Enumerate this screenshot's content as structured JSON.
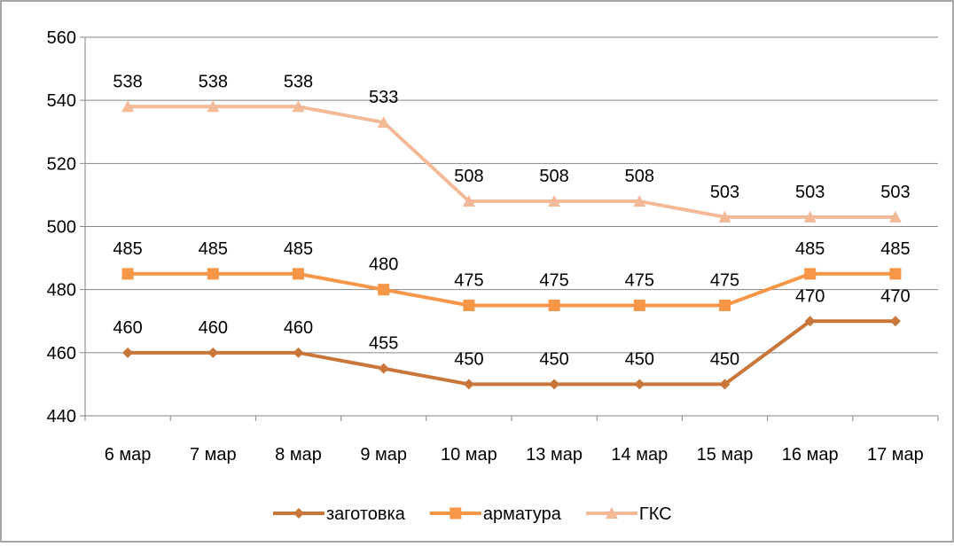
{
  "chart_data": {
    "type": "line",
    "categories": [
      "6 мар",
      "7 мар",
      "8 мар",
      "9 мар",
      "10 мар",
      "13 мар",
      "14 мар",
      "15 мар",
      "16 мар",
      "17 мар"
    ],
    "series": [
      {
        "name": "заготовка",
        "values": [
          460,
          460,
          460,
          455,
          450,
          450,
          450,
          450,
          470,
          470
        ],
        "color": "#C8763A",
        "marker": "diamond"
      },
      {
        "name": "арматура",
        "values": [
          485,
          485,
          485,
          480,
          475,
          475,
          475,
          475,
          485,
          485
        ],
        "color": "#F79646",
        "marker": "square"
      },
      {
        "name": "ГКС",
        "values": [
          538,
          538,
          538,
          533,
          508,
          508,
          508,
          503,
          503,
          503
        ],
        "color": "#F4B996",
        "marker": "triangle"
      }
    ],
    "yticks": [
      440,
      460,
      480,
      500,
      520,
      540,
      560
    ],
    "ylim": [
      440,
      560
    ],
    "grid": true,
    "legend": "bottom"
  }
}
